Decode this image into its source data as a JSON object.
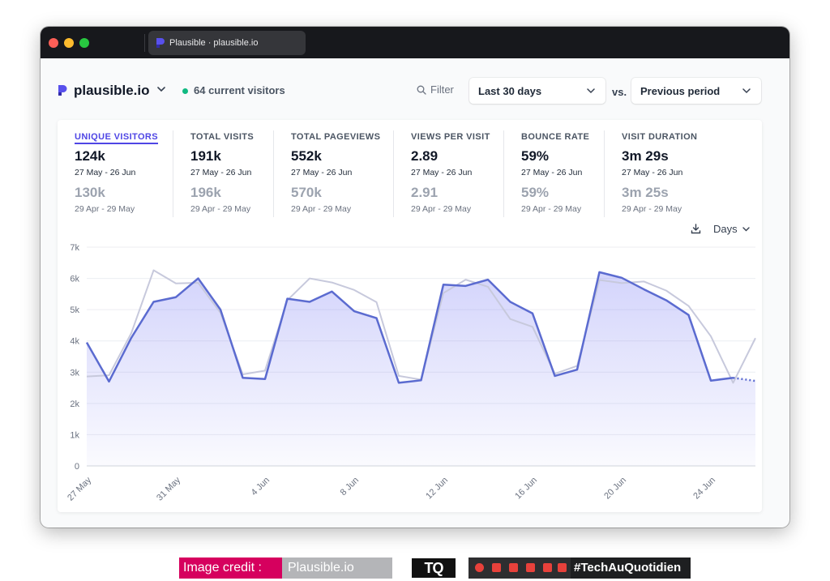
{
  "browser": {
    "tab_title": "Plausible · plausible.io"
  },
  "header": {
    "site_name": "plausible.io",
    "current_visitors": "64 current visitors",
    "filter_label": "Filter",
    "period": "Last 30 days",
    "vs_label": "vs.",
    "comparison": "Previous period"
  },
  "metrics": [
    {
      "label": "UNIQUE VISITORS",
      "value": "124k",
      "range": "27 May - 26 Jun",
      "prev_value": "130k",
      "prev_range": "29 Apr - 29 May",
      "active": true
    },
    {
      "label": "TOTAL VISITS",
      "value": "191k",
      "range": "27 May - 26 Jun",
      "prev_value": "196k",
      "prev_range": "29 Apr - 29 May"
    },
    {
      "label": "TOTAL PAGEVIEWS",
      "value": "552k",
      "range": "27 May - 26 Jun",
      "prev_value": "570k",
      "prev_range": "29 Apr - 29 May"
    },
    {
      "label": "VIEWS PER VISIT",
      "value": "2.89",
      "range": "27 May - 26 Jun",
      "prev_value": "2.91",
      "prev_range": "29 Apr - 29 May"
    },
    {
      "label": "BOUNCE RATE",
      "value": "59%",
      "range": "27 May - 26 Jun",
      "prev_value": "59%",
      "prev_range": "29 Apr - 29 May"
    },
    {
      "label": "VISIT DURATION",
      "value": "3m 29s",
      "range": "27 May - 26 Jun",
      "prev_value": "3m 25s",
      "prev_range": "29 Apr - 29 May"
    }
  ],
  "chart_controls": {
    "interval": "Days"
  },
  "chart_data": {
    "type": "area",
    "y_ticks": [
      "0",
      "1k",
      "2k",
      "3k",
      "4k",
      "5k",
      "6k",
      "7k"
    ],
    "ylim": [
      0,
      7000
    ],
    "grid": true,
    "x_tick_labels": [
      {
        "index": 0,
        "label": "27 May"
      },
      {
        "index": 4,
        "label": "31 May"
      },
      {
        "index": 8,
        "label": "4 Jun"
      },
      {
        "index": 12,
        "label": "8 Jun"
      },
      {
        "index": 16,
        "label": "12 Jun"
      },
      {
        "index": 20,
        "label": "16 Jun"
      },
      {
        "index": 24,
        "label": "20 Jun"
      },
      {
        "index": 28,
        "label": "24 Jun"
      }
    ],
    "x": [
      "27 May",
      "28 May",
      "29 May",
      "30 May",
      "31 May",
      "1 Jun",
      "2 Jun",
      "3 Jun",
      "4 Jun",
      "5 Jun",
      "6 Jun",
      "7 Jun",
      "8 Jun",
      "9 Jun",
      "10 Jun",
      "11 Jun",
      "12 Jun",
      "13 Jun",
      "14 Jun",
      "15 Jun",
      "16 Jun",
      "17 Jun",
      "18 Jun",
      "19 Jun",
      "20 Jun",
      "21 Jun",
      "22 Jun",
      "23 Jun",
      "24 Jun",
      "25 Jun",
      "26 Jun"
    ],
    "series": [
      {
        "values": [
          3950,
          2700,
          4100,
          5250,
          5400,
          6000,
          5000,
          2820,
          2780,
          5350,
          5250,
          5580,
          4950,
          4730,
          2660,
          2740,
          5800,
          5760,
          5960,
          5250,
          4880,
          2880,
          3080,
          6200,
          6020,
          5650,
          5300,
          4830,
          2730,
          2820,
          2720
        ],
        "color": "#5b6bd0",
        "incomplete_last_point": true
      },
      {
        "values": [
          2860,
          2900,
          4250,
          6260,
          5840,
          5860,
          4900,
          2930,
          3050,
          5300,
          6000,
          5870,
          5630,
          5240,
          2880,
          2760,
          5530,
          5960,
          5730,
          4700,
          4450,
          2950,
          3200,
          5950,
          5850,
          5900,
          5610,
          5120,
          4150,
          2660,
          4090
        ],
        "color": "#c7c9dc"
      }
    ]
  },
  "footer": {
    "credit_label": "Image credit :",
    "credit_source": "Plausible.io",
    "brand": "TQ",
    "hashtag": "#TechAuQuotidien"
  },
  "colors": {
    "accent": "#4f46e5",
    "live": "#10b981",
    "series_current": "#5b6bd0",
    "series_previous": "#c7c9dc",
    "credit_bg": "#d6005e"
  },
  "icons": [
    "plausible-logo-icon",
    "chevron-down-icon",
    "search-icon",
    "download-icon",
    "social-icons"
  ]
}
